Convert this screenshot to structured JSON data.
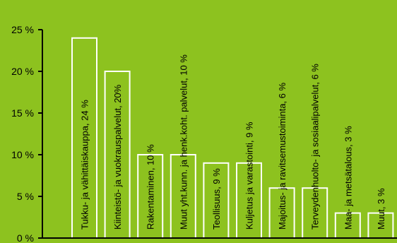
{
  "chart_data": {
    "type": "bar",
    "categories": [
      "Tukku- ja vähittäiskauppa",
      "Kiinteistö- ja vuokrauspalvelut",
      "Rakentaminen",
      "Muut yht.kunn. ja henk.koht. palvelut",
      "Teollisuus",
      "Kuljetus ja varastointi",
      "Majoitus- ja ravitsemustoiminta",
      "Terveydenhuolto- ja sosiaalipalvelut",
      "Maa- ja metsätalous",
      "Muut"
    ],
    "values": [
      24,
      20,
      10,
      10,
      9,
      9,
      6,
      6,
      3,
      3
    ],
    "bar_labels": [
      "Tukku- ja vähittäiskauppa, 24 %",
      "Kiinteistö- ja vuokrauspalvelut, 20%",
      "Rakentaminen, 10 %",
      "Muut yht.kunn. ja henk.koht. palvelut, 10 %",
      "Teollisuus, 9 %",
      "Kuljetus ja varastointi, 9 %",
      "Majoitus- ja ravitsemustoiminta, 6 %",
      "Terveydenhuolto- ja sosiaalipalvelut, 6 %",
      "Maa- ja metsätalous, 3 %",
      "Muut, 3 %"
    ],
    "yticks": [
      0,
      5,
      10,
      15,
      20,
      25
    ],
    "ytick_labels": [
      "0 %",
      "5 %",
      "10 %",
      "15 %",
      "20 %",
      "25 %"
    ],
    "ylim": [
      0,
      25
    ],
    "title": "",
    "xlabel": "",
    "ylabel": "",
    "grid": false,
    "colors": {
      "background": "#8dc21f",
      "bar": "#8dc21f",
      "bar_stroke": "#ffffff",
      "axis": "#000000",
      "text": "#000000"
    }
  }
}
